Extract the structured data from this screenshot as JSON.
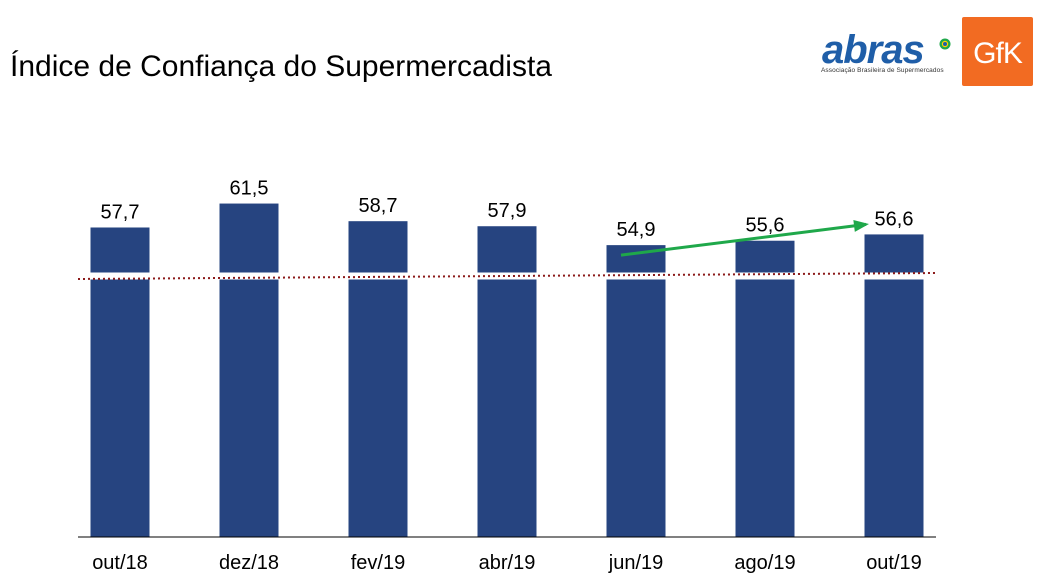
{
  "header": {
    "title": "Índice de Confiança do Supermercadista"
  },
  "logos": {
    "abras_word": "abras",
    "abras_tagline": "Associação Brasileira de Supermercados",
    "gfk_word": "GfK"
  },
  "colors": {
    "bar": "#264480",
    "reference_line": "#8b1a1a",
    "trend_arrow": "#1fa84a",
    "abras_blue": "#1f5ea8",
    "gfk_orange": "#f26b22"
  },
  "chart_data": {
    "type": "bar",
    "categories": [
      "out/18",
      "dez/18",
      "fev/19",
      "abr/19",
      "jun/19",
      "ago/19",
      "out/19"
    ],
    "values": [
      57.7,
      61.5,
      58.7,
      57.9,
      54.9,
      55.6,
      56.6
    ],
    "value_labels": [
      "57,7",
      "61,5",
      "58,7",
      "57,9",
      "54,9",
      "55,6",
      "56,6"
    ],
    "reference_line": 50,
    "reference_line_style": "dotted",
    "axis_break": true,
    "trend_arrow": {
      "from": "jun/19",
      "to": "out/19"
    },
    "grid": false,
    "legend": "none"
  }
}
